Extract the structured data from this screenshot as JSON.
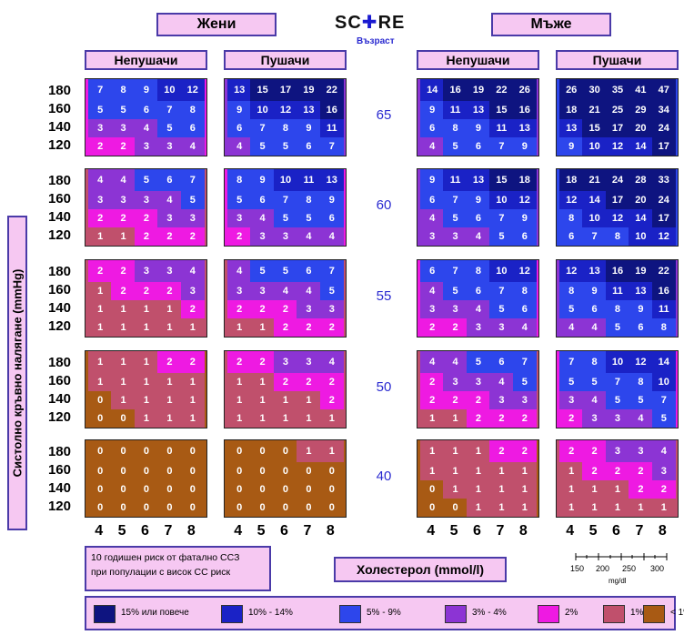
{
  "header": {
    "women": "Жени",
    "men": "Мъже",
    "logo_left": "SC",
    "logo_right": "RE",
    "age_label": "Възраст"
  },
  "subheaders": [
    "Непушачи",
    "Пушачи",
    "Непушачи",
    "Пушачи"
  ],
  "y_axis_label": "Систолно кръвно налягане (mmHg)",
  "x_axis_label": "Холестерол (mmol/l)",
  "note_text": [
    "10 годишен риск от фатално ССЗ",
    "при популации с висок СС риск"
  ],
  "mgdl_scale": {
    "ticks": [
      "150",
      "200",
      "250",
      "300"
    ],
    "unit": "mg/dl"
  },
  "colors": {
    "c15": "#0e1480",
    "c10": "#1a22c6",
    "c5": "#2d46ec",
    "c3": "#8c34d4",
    "c2": "#ee1ae2",
    "c1": "#c0506c",
    "c0": "#a85a14"
  },
  "legend": [
    {
      "label": "15% или повече",
      "color": "c15"
    },
    {
      "label": "10% - 14%",
      "color": "c10"
    },
    {
      "label": "5% - 9%",
      "color": "c5"
    },
    {
      "label": "3% - 4%",
      "color": "c3"
    },
    {
      "label": "2%",
      "color": "c2"
    },
    {
      "label": "1%",
      "color": "c1"
    },
    {
      "label": "< 1%",
      "color": "c0"
    }
  ],
  "chart_data": {
    "type": "heatmap",
    "title": "SCORE",
    "ylabel": "Систолно кръвно налягане (mmHg)",
    "xlabel": "Холестерол (mmol/l)",
    "ages": [
      65,
      60,
      55,
      50,
      40
    ],
    "blood_pressure": [
      180,
      160,
      140,
      120
    ],
    "cholesterol": [
      4,
      5,
      6,
      7,
      8
    ],
    "groups": [
      "Жени Непушачи",
      "Жени Пушачи",
      "Мъже Непушачи",
      "Мъже Пушачи"
    ],
    "values": [
      [
        [
          [
            7,
            8,
            9,
            10,
            12
          ],
          [
            5,
            5,
            6,
            7,
            8
          ],
          [
            3,
            3,
            4,
            5,
            6
          ],
          [
            2,
            2,
            3,
            3,
            4
          ]
        ],
        [
          [
            13,
            15,
            17,
            19,
            22
          ],
          [
            9,
            10,
            12,
            13,
            16
          ],
          [
            6,
            7,
            8,
            9,
            11
          ],
          [
            4,
            5,
            5,
            6,
            7
          ]
        ],
        [
          [
            14,
            16,
            19,
            22,
            26
          ],
          [
            9,
            11,
            13,
            15,
            16
          ],
          [
            6,
            8,
            9,
            11,
            13
          ],
          [
            4,
            5,
            6,
            7,
            9
          ]
        ],
        [
          [
            26,
            30,
            35,
            41,
            47
          ],
          [
            18,
            21,
            25,
            29,
            34
          ],
          [
            13,
            15,
            17,
            20,
            24
          ],
          [
            9,
            10,
            12,
            14,
            17
          ]
        ]
      ],
      [
        [
          [
            4,
            4,
            5,
            6,
            7
          ],
          [
            3,
            3,
            3,
            4,
            5
          ],
          [
            2,
            2,
            2,
            3,
            3
          ],
          [
            1,
            1,
            2,
            2,
            2
          ]
        ],
        [
          [
            8,
            9,
            10,
            11,
            13
          ],
          [
            5,
            6,
            7,
            8,
            9
          ],
          [
            3,
            4,
            5,
            5,
            6
          ],
          [
            2,
            3,
            3,
            4,
            4
          ]
        ],
        [
          [
            9,
            11,
            13,
            15,
            18
          ],
          [
            6,
            7,
            9,
            10,
            12
          ],
          [
            4,
            5,
            6,
            7,
            9
          ],
          [
            3,
            3,
            4,
            5,
            6
          ]
        ],
        [
          [
            18,
            21,
            24,
            28,
            33
          ],
          [
            12,
            14,
            17,
            20,
            24
          ],
          [
            8,
            10,
            12,
            14,
            17
          ],
          [
            6,
            7,
            8,
            10,
            12
          ]
        ]
      ],
      [
        [
          [
            2,
            2,
            3,
            3,
            4
          ],
          [
            1,
            2,
            2,
            2,
            3
          ],
          [
            1,
            1,
            1,
            1,
            2
          ],
          [
            1,
            1,
            1,
            1,
            1
          ]
        ],
        [
          [
            4,
            5,
            5,
            6,
            7
          ],
          [
            3,
            3,
            4,
            4,
            5
          ],
          [
            2,
            2,
            2,
            3,
            3
          ],
          [
            1,
            1,
            2,
            2,
            2
          ]
        ],
        [
          [
            6,
            7,
            8,
            10,
            12
          ],
          [
            4,
            5,
            6,
            7,
            8
          ],
          [
            3,
            3,
            4,
            5,
            6
          ],
          [
            2,
            2,
            3,
            3,
            4
          ]
        ],
        [
          [
            12,
            13,
            16,
            19,
            22
          ],
          [
            8,
            9,
            11,
            13,
            16
          ],
          [
            5,
            6,
            8,
            9,
            11
          ],
          [
            4,
            4,
            5,
            6,
            8
          ]
        ]
      ],
      [
        [
          [
            1,
            1,
            1,
            2,
            2
          ],
          [
            1,
            1,
            1,
            1,
            1
          ],
          [
            0,
            1,
            1,
            1,
            1
          ],
          [
            0,
            0,
            1,
            1,
            1
          ]
        ],
        [
          [
            2,
            2,
            3,
            3,
            4
          ],
          [
            1,
            1,
            2,
            2,
            2
          ],
          [
            1,
            1,
            1,
            1,
            2
          ],
          [
            1,
            1,
            1,
            1,
            1
          ]
        ],
        [
          [
            4,
            4,
            5,
            6,
            7
          ],
          [
            2,
            3,
            3,
            4,
            5
          ],
          [
            2,
            2,
            2,
            3,
            3
          ],
          [
            1,
            1,
            2,
            2,
            2
          ]
        ],
        [
          [
            7,
            8,
            10,
            12,
            14
          ],
          [
            5,
            5,
            7,
            8,
            10
          ],
          [
            3,
            4,
            5,
            5,
            7
          ],
          [
            2,
            3,
            3,
            4,
            5
          ]
        ]
      ],
      [
        [
          [
            0,
            0,
            0,
            0,
            0
          ],
          [
            0,
            0,
            0,
            0,
            0
          ],
          [
            0,
            0,
            0,
            0,
            0
          ],
          [
            0,
            0,
            0,
            0,
            0
          ]
        ],
        [
          [
            0,
            0,
            0,
            1,
            1
          ],
          [
            0,
            0,
            0,
            0,
            0
          ],
          [
            0,
            0,
            0,
            0,
            0
          ],
          [
            0,
            0,
            0,
            0,
            0
          ]
        ],
        [
          [
            1,
            1,
            1,
            2,
            2
          ],
          [
            1,
            1,
            1,
            1,
            1
          ],
          [
            0,
            1,
            1,
            1,
            1
          ],
          [
            0,
            0,
            1,
            1,
            1
          ]
        ],
        [
          [
            2,
            2,
            3,
            3,
            4
          ],
          [
            1,
            2,
            2,
            2,
            3
          ],
          [
            1,
            1,
            1,
            2,
            2
          ],
          [
            1,
            1,
            1,
            1,
            1
          ]
        ]
      ]
    ]
  }
}
